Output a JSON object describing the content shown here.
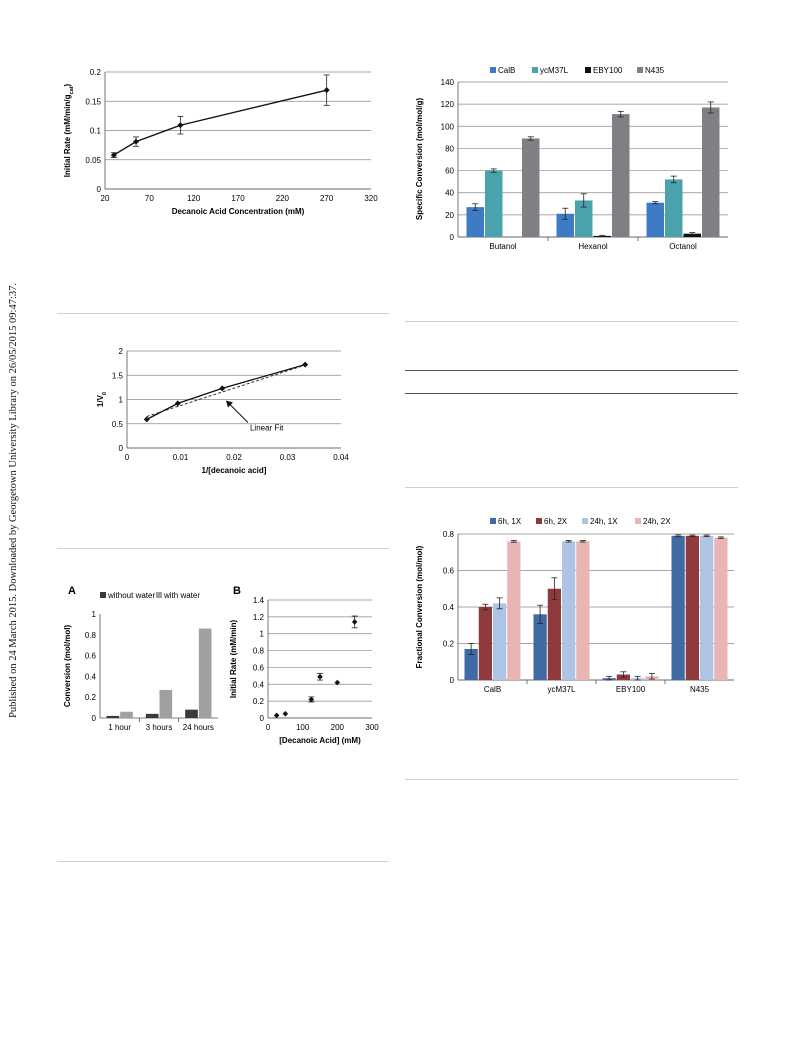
{
  "sidebar_text": "Published on 24 March 2015. Downloaded by Georgetown University Library on 26/05/2015 09:47:37.",
  "chart_data": [
    {
      "id": "rate-vs-concentration",
      "type": "line",
      "xlabel": "Decanoic Acid Concentration (mM)",
      "ylabel": "Initial Rate (mM/min/g",
      "ylabel_sub": "cat",
      "ylabel_close": ")",
      "xlim": [
        20,
        320
      ],
      "ylim": [
        0,
        0.2
      ],
      "xticks": [
        "20",
        "70",
        "120",
        "170",
        "220",
        "270",
        "320"
      ],
      "yticks": [
        "0",
        "0.05",
        "0.1",
        "0.15",
        "0.2"
      ],
      "grid": "horizontal",
      "series": [
        {
          "x": [
            30,
            55,
            105,
            270
          ],
          "y": [
            0.058,
            0.081,
            0.109,
            0.169
          ],
          "err": [
            0.004,
            0.008,
            0.015,
            0.026
          ]
        }
      ]
    },
    {
      "id": "lineweaver-burk",
      "type": "line",
      "xlabel": "1/[decanoic acid]",
      "ylabel": "1/V",
      "ylabel_sub": "0",
      "xlim": [
        0,
        0.04
      ],
      "ylim": [
        0,
        2
      ],
      "xticks": [
        "0",
        "0.01",
        "0.02",
        "0.03",
        "0.04"
      ],
      "yticks": [
        "0",
        "0.5",
        "1",
        "1.5",
        "2"
      ],
      "grid": "horizontal",
      "annotation": "Linear Fit",
      "series": [
        {
          "x": [
            0.0037,
            0.0095,
            0.0178,
            0.0333
          ],
          "y": [
            0.59,
            0.92,
            1.23,
            1.72
          ]
        }
      ],
      "fit": {
        "x": [
          0.0037,
          0.0333
        ],
        "y": [
          0.65,
          1.71
        ]
      }
    },
    {
      "id": "conversion-water",
      "type": "bar",
      "panel_label": "A",
      "ylabel": "Conversion (mol/mol)",
      "ylim": [
        0,
        1
      ],
      "yticks": [
        "0",
        "0.2",
        "0.4",
        "0.6",
        "0.8",
        "1"
      ],
      "categories": [
        "1 hour",
        "3 hours",
        "24 hours"
      ],
      "legend": "top",
      "series": [
        {
          "name": "without water",
          "color": "#3a3a3a",
          "values": [
            0.02,
            0.04,
            0.08
          ]
        },
        {
          "name": "with water",
          "color": "#a0a0a0",
          "values": [
            0.06,
            0.27,
            0.86
          ]
        }
      ]
    },
    {
      "id": "rate-scatter",
      "type": "scatter",
      "panel_label": "B",
      "xlabel": "[Decanoic Acid] (mM)",
      "ylabel": "Initial Rate (mM/min)",
      "xlim": [
        0,
        300
      ],
      "ylim": [
        0,
        1.4
      ],
      "xticks": [
        "0",
        "100",
        "200",
        "300"
      ],
      "yticks": [
        "0",
        "0.2",
        "0.4",
        "0.6",
        "0.8",
        "1",
        "1.2",
        "1.4"
      ],
      "grid": "horizontal",
      "series": [
        {
          "x": [
            25,
            50,
            125,
            150,
            200,
            250
          ],
          "y": [
            0.03,
            0.05,
            0.22,
            0.49,
            0.42,
            1.14
          ],
          "err": [
            0,
            0,
            0.03,
            0.04,
            0,
            0.07
          ]
        }
      ]
    },
    {
      "id": "specific-conversion",
      "type": "bar",
      "ylabel": "Specific Conversion (mol/mol/g)",
      "ylim": [
        0,
        140
      ],
      "yticks": [
        "0",
        "20",
        "40",
        "60",
        "80",
        "100",
        "120",
        "140"
      ],
      "categories": [
        "Butanol",
        "Hexanol",
        "Octanol"
      ],
      "legend": "top",
      "grid": "horizontal",
      "series": [
        {
          "name": "CalB",
          "color": "#3d7cc4",
          "values": [
            27,
            21,
            31
          ],
          "err": [
            3,
            5,
            1
          ]
        },
        {
          "name": "ycM37L",
          "color": "#4aa3ac",
          "values": [
            60,
            33,
            52
          ],
          "err": [
            1.5,
            6,
            3
          ]
        },
        {
          "name": "EBY100",
          "color": "#111111",
          "values": [
            0,
            1,
            3
          ],
          "err": [
            0,
            0.5,
            1
          ]
        },
        {
          "name": "N435",
          "color": "#808084",
          "values": [
            89,
            111,
            117
          ],
          "err": [
            1.5,
            2.5,
            5
          ]
        }
      ]
    },
    {
      "id": "fractional-conversion",
      "type": "bar",
      "ylabel": "Fractional Conversion (mol/mol)",
      "ylim": [
        0,
        0.8
      ],
      "yticks": [
        "0",
        "0.2",
        "0.4",
        "0.6",
        "0.8"
      ],
      "categories": [
        "CalB",
        "ycM37L",
        "EBY100",
        "N435"
      ],
      "legend": "top",
      "grid": "horizontal",
      "series": [
        {
          "name": "6h, 1X",
          "color": "#3f6aa4",
          "values": [
            0.17,
            0.36,
            0.01,
            0.79
          ],
          "err": [
            0.03,
            0.05,
            0.01,
            0.005
          ]
        },
        {
          "name": "6h, 2X",
          "color": "#8f3b3d",
          "values": [
            0.4,
            0.5,
            0.03,
            0.79
          ],
          "err": [
            0.015,
            0.06,
            0.015,
            0.004
          ]
        },
        {
          "name": "24h, 1X",
          "color": "#aec4e4",
          "values": [
            0.42,
            0.76,
            0.01,
            0.79
          ],
          "err": [
            0.03,
            0.004,
            0.01,
            0.004
          ]
        },
        {
          "name": "24h, 2X",
          "color": "#e8b4b4",
          "values": [
            0.76,
            0.76,
            0.02,
            0.78
          ],
          "err": [
            0.005,
            0.004,
            0.015,
            0.004
          ]
        }
      ]
    }
  ]
}
